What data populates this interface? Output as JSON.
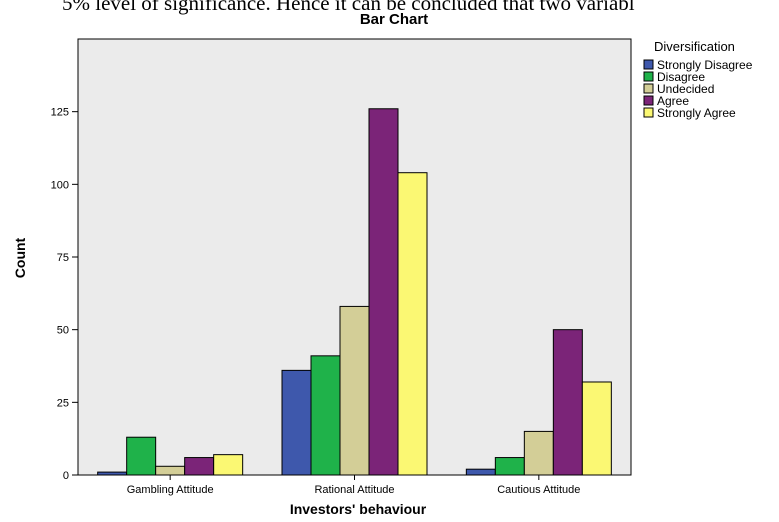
{
  "page_text": {
    "cropped_header_text": "5% level of significance. Hence it can be concluded that two variabl"
  },
  "colors": {
    "plot_background": "#ebebeb",
    "axis": "#000000",
    "bar_outline": "#000000"
  },
  "chart_data": {
    "type": "bar",
    "title": "Bar Chart",
    "xlabel": "Investors' behaviour",
    "ylabel": "Count",
    "categories": [
      "Gambling Attitude",
      "Rational Attitude",
      "Cautious Attitude"
    ],
    "ylim": [
      0,
      150
    ],
    "yticks": [
      0,
      25,
      50,
      75,
      100,
      125
    ],
    "legend": {
      "title": "Diversification",
      "placement": "right"
    },
    "grid": false,
    "series": [
      {
        "name": "Strongly Disagree",
        "color": "#3e58ac",
        "values": [
          1,
          36,
          2
        ]
      },
      {
        "name": "Disagree",
        "color": "#1fb24a",
        "values": [
          13,
          41,
          6
        ]
      },
      {
        "name": "Undecided",
        "color": "#d3ce97",
        "values": [
          3,
          58,
          15
        ]
      },
      {
        "name": "Agree",
        "color": "#7b2478",
        "values": [
          6,
          126,
          50
        ]
      },
      {
        "name": "Strongly Agree",
        "color": "#fbf873",
        "values": [
          7,
          104,
          32
        ]
      }
    ]
  }
}
